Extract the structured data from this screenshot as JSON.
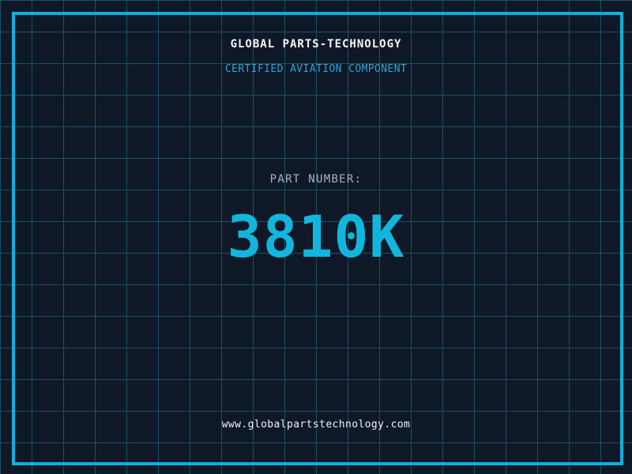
{
  "page": {
    "company_name": "GLOBAL PARTS-TECHNOLOGY",
    "tagline": "CERTIFIED AVIATION COMPONENT",
    "part_label": "PART NUMBER:",
    "part_number": "3810K",
    "website": "www.globalpartstechnology.com",
    "colors": {
      "background": "#0f1827",
      "grid_line": "#1a5068",
      "frame_border": "#0cb2dc",
      "part_number_cyan": "#12b6dc",
      "tagline_cyan": "#2fa3d2",
      "label_gray": "#a7b3c0",
      "text_white": "#f4f8fa"
    }
  }
}
